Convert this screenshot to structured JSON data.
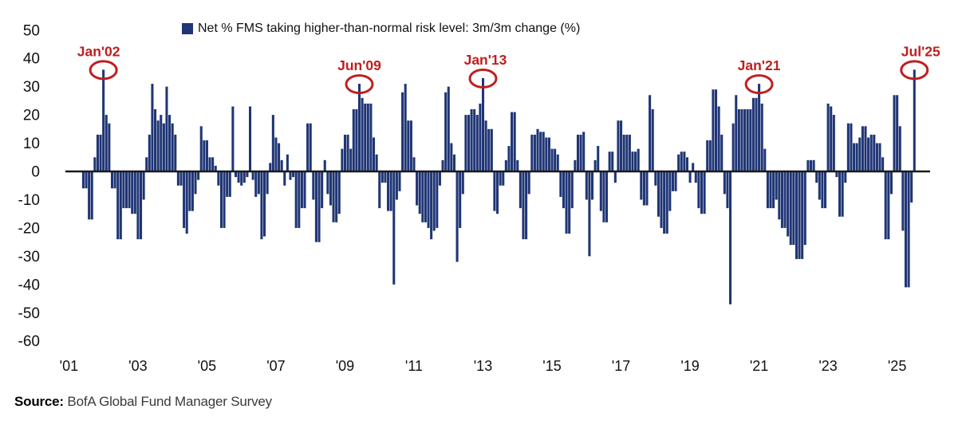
{
  "legend": {
    "label": "Net % FMS taking higher-than-normal risk level: 3m/3m change (%)"
  },
  "source": {
    "prefix": "Source:",
    "text": " BofA Global Fund Manager Survey"
  },
  "colors": {
    "bar": "#1F3575",
    "annotation_red": "#BF1F1F",
    "axis_text": "#111111",
    "zero_line": "#1a1a1a",
    "background": "#ffffff"
  },
  "chart_data": {
    "type": "bar",
    "title": "Net % FMS taking higher-than-normal risk level: 3m/3m change (%)",
    "xlabel": "",
    "ylabel": "",
    "ylim": [
      -60,
      50
    ],
    "grid": false,
    "legend_position": "top-center",
    "y_ticks": [
      "50",
      "40",
      "30",
      "20",
      "10",
      "0",
      "-10",
      "-20",
      "-30",
      "-40",
      "-50",
      "-60"
    ],
    "x_ticks": [
      {
        "label": "'01",
        "year": 2001
      },
      {
        "label": "'03",
        "year": 2003
      },
      {
        "label": "'05",
        "year": 2005
      },
      {
        "label": "'07",
        "year": 2007
      },
      {
        "label": "'09",
        "year": 2009
      },
      {
        "label": "'11",
        "year": 2011
      },
      {
        "label": "'13",
        "year": 2013
      },
      {
        "label": "'15",
        "year": 2015
      },
      {
        "label": "'17",
        "year": 2017
      },
      {
        "label": "'19",
        "year": 2019
      },
      {
        "label": "'21",
        "year": 2021
      },
      {
        "label": "'23",
        "year": 2023
      },
      {
        "label": "'25",
        "year": 2025
      }
    ],
    "start": {
      "year": 2001,
      "month": 6
    },
    "series": [
      {
        "year": 2001,
        "values": [
          -6,
          -6,
          -17,
          -17,
          5,
          13,
          13
        ]
      },
      {
        "year": 2002,
        "values": [
          36,
          20,
          17,
          -6,
          -6,
          -24,
          -24,
          -13,
          -13,
          -13,
          -15,
          -15
        ]
      },
      {
        "year": 2003,
        "values": [
          -24,
          -24,
          -10,
          5,
          13,
          31,
          22,
          18,
          20,
          17,
          30,
          20
        ]
      },
      {
        "year": 2004,
        "values": [
          17,
          13,
          -5,
          -5,
          -20,
          -22,
          -14,
          -14,
          -8,
          -3,
          16,
          11
        ]
      },
      {
        "year": 2005,
        "values": [
          11,
          5,
          5,
          2,
          -5,
          -20,
          -20,
          -9,
          -9,
          23,
          -2,
          -4
        ]
      },
      {
        "year": 2006,
        "values": [
          -5,
          -4,
          -2,
          23,
          -3,
          -9,
          -8,
          -24,
          -23,
          -8,
          3,
          20
        ]
      },
      {
        "year": 2007,
        "values": [
          12,
          10,
          4,
          -5,
          6,
          -3,
          -2,
          -20,
          -20,
          -13,
          -13,
          17
        ]
      },
      {
        "year": 2008,
        "values": [
          17,
          -10,
          -25,
          -25,
          -13,
          4,
          -8,
          -12,
          -18,
          -18,
          -15,
          8
        ]
      },
      {
        "year": 2009,
        "values": [
          13,
          13,
          8,
          22,
          22,
          31,
          26,
          24,
          24,
          24,
          12,
          6
        ]
      },
      {
        "year": 2010,
        "values": [
          -13,
          -4,
          -4,
          -14,
          -14,
          -40,
          -10,
          -7,
          28,
          31,
          18,
          18
        ]
      },
      {
        "year": 2011,
        "values": [
          5,
          -12,
          -15,
          -18,
          -18,
          -20,
          -24,
          -21,
          -20,
          -5,
          4,
          28
        ]
      },
      {
        "year": 2012,
        "values": [
          30,
          10,
          6,
          -32,
          -20,
          -8,
          20,
          20,
          22,
          22,
          20,
          24
        ]
      },
      {
        "year": 2013,
        "values": [
          33,
          18,
          15,
          15,
          -14,
          -15,
          -5,
          -5,
          4,
          9,
          21,
          21
        ]
      },
      {
        "year": 2014,
        "values": [
          4,
          -13,
          -24,
          -24,
          -8,
          13,
          13,
          15,
          14,
          14,
          12,
          12
        ]
      },
      {
        "year": 2015,
        "values": [
          8,
          8,
          6,
          -9,
          -13,
          -22,
          -22,
          -13,
          4,
          13,
          13,
          14
        ]
      },
      {
        "year": 2016,
        "values": [
          -10,
          -30,
          -10,
          4,
          9,
          -14,
          -18,
          -18,
          7,
          7,
          -4,
          18
        ]
      },
      {
        "year": 2017,
        "values": [
          18,
          13,
          13,
          13,
          7,
          7,
          8,
          -10,
          -12,
          -12,
          27,
          22
        ]
      },
      {
        "year": 2018,
        "values": [
          -5,
          -16,
          -20,
          -22,
          -22,
          -14,
          -7,
          -7,
          6,
          7,
          7,
          5
        ]
      },
      {
        "year": 2019,
        "values": [
          -4,
          3,
          -4,
          -13,
          -15,
          -15,
          11,
          11,
          29,
          29,
          23,
          13
        ]
      },
      {
        "year": 2020,
        "values": [
          -8,
          -13,
          -47,
          17,
          27,
          22,
          22,
          22,
          22,
          22,
          26,
          26
        ]
      },
      {
        "year": 2021,
        "values": [
          31,
          24,
          8,
          -13,
          -13,
          -13,
          -10,
          -17,
          -20,
          -20,
          -23,
          -26
        ]
      },
      {
        "year": 2022,
        "values": [
          -26,
          -31,
          -31,
          -31,
          -26,
          4,
          4,
          4,
          -4,
          -10,
          -13,
          -13
        ]
      },
      {
        "year": 2023,
        "values": [
          24,
          23,
          20,
          -2,
          -16,
          -16,
          -4,
          17,
          17,
          10,
          10,
          12
        ]
      },
      {
        "year": 2024,
        "values": [
          16,
          16,
          12,
          13,
          13,
          10,
          10,
          5,
          -24,
          -24,
          -8,
          27
        ]
      },
      {
        "year": 2025,
        "values": [
          27,
          16,
          -21,
          -41,
          -41,
          -11,
          36
        ]
      }
    ],
    "annotations": [
      {
        "label": "Jan'02",
        "year": 2002,
        "month": 1,
        "value": 36,
        "dx": -6
      },
      {
        "label": "Jun'09",
        "year": 2009,
        "month": 6,
        "value": 31,
        "dx": 0
      },
      {
        "label": "Jan'13",
        "year": 2013,
        "month": 1,
        "value": 33,
        "dx": 3
      },
      {
        "label": "Jan'21",
        "year": 2021,
        "month": 1,
        "value": 31,
        "dx": 0
      },
      {
        "label": "Jul'25",
        "year": 2025,
        "month": 7,
        "value": 36,
        "dx": 8
      }
    ]
  }
}
